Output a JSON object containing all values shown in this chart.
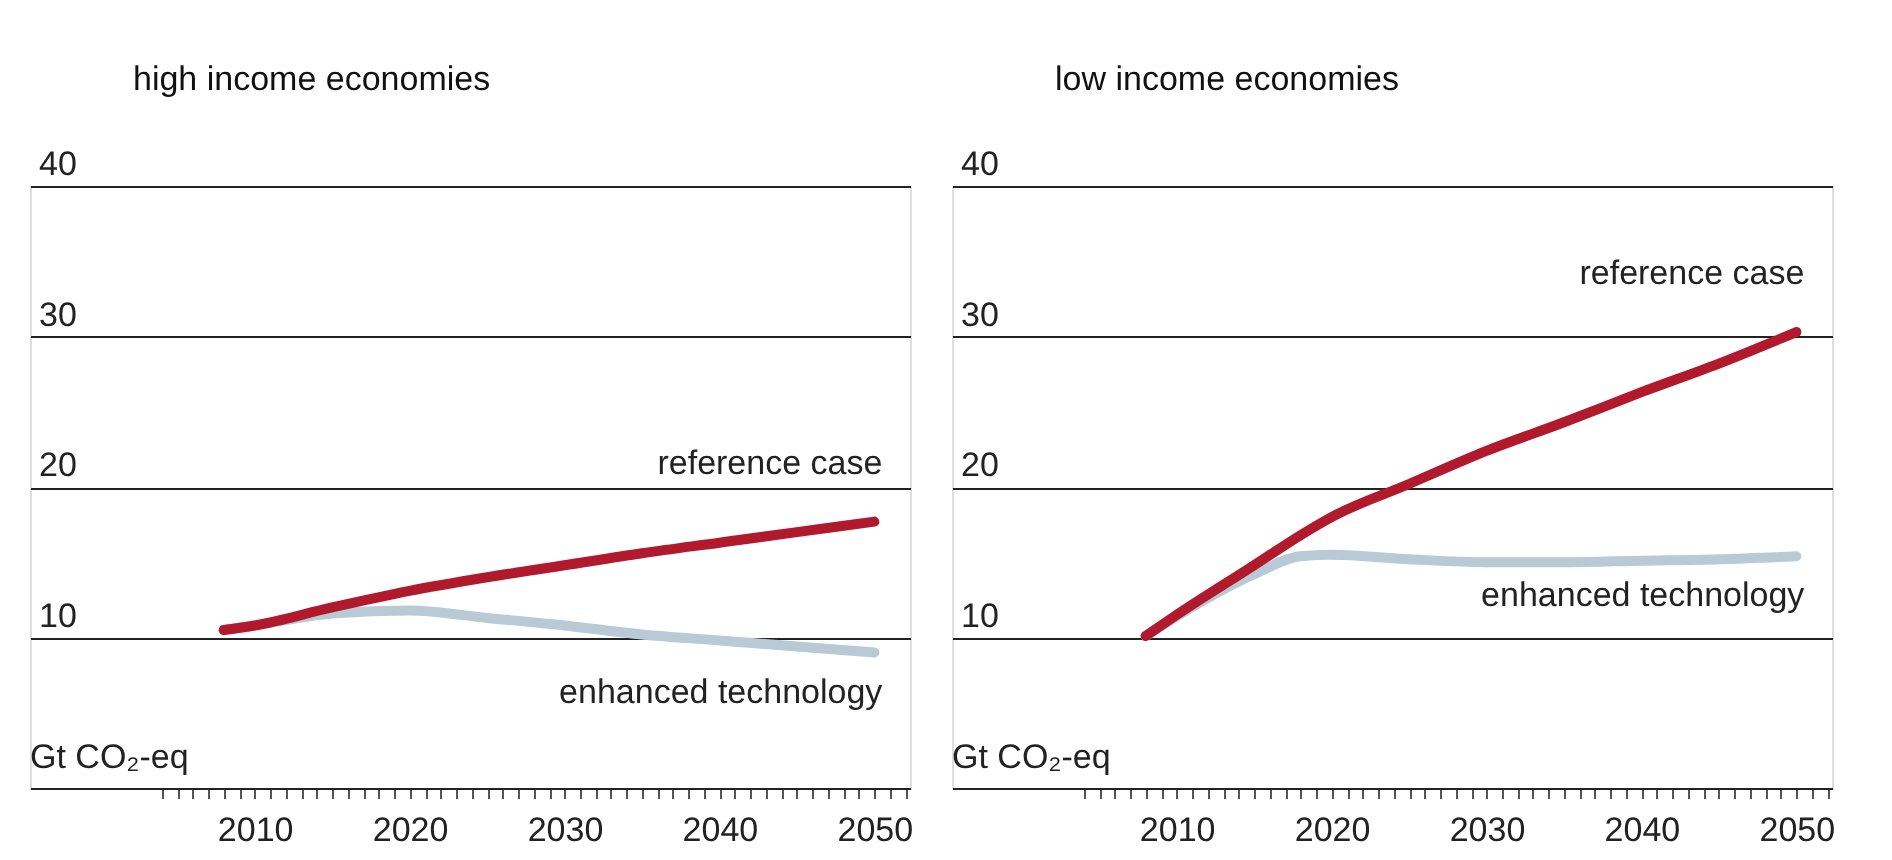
{
  "chart_data": [
    {
      "type": "line",
      "title": "high income economies",
      "ylabel": "Gt CO₂-eq",
      "xlim": [
        1995.5,
        2052.3
      ],
      "ylim": [
        0,
        40
      ],
      "yticks": [
        10,
        20,
        30,
        40
      ],
      "grid": "y",
      "legend": false,
      "xticks": [
        {
          "value": 2004,
          "label": null
        },
        {
          "value": 2005,
          "label": null
        },
        {
          "value": 2006,
          "label": null
        },
        {
          "value": 2007,
          "label": null
        },
        {
          "value": 2008,
          "label": null
        },
        {
          "value": 2009,
          "label": null
        },
        2010,
        {
          "value": 2011,
          "label": null
        },
        {
          "value": 2012,
          "label": null
        },
        {
          "value": 2013,
          "label": null
        },
        {
          "value": 2014,
          "label": null
        },
        {
          "value": 2015,
          "label": null
        },
        {
          "value": 2016,
          "label": null
        },
        {
          "value": 2017,
          "label": null
        },
        {
          "value": 2018,
          "label": null
        },
        {
          "value": 2019,
          "label": null
        },
        2020,
        {
          "value": 2021,
          "label": null
        },
        {
          "value": 2022,
          "label": null
        },
        {
          "value": 2023,
          "label": null
        },
        {
          "value": 2024,
          "label": null
        },
        {
          "value": 2025,
          "label": null
        },
        {
          "value": 2026,
          "label": null
        },
        {
          "value": 2027,
          "label": null
        },
        {
          "value": 2028,
          "label": null
        },
        {
          "value": 2029,
          "label": null
        },
        2030,
        {
          "value": 2031,
          "label": null
        },
        {
          "value": 2032,
          "label": null
        },
        {
          "value": 2033,
          "label": null
        },
        {
          "value": 2034,
          "label": null
        },
        {
          "value": 2035,
          "label": null
        },
        {
          "value": 2036,
          "label": null
        },
        {
          "value": 2037,
          "label": null
        },
        {
          "value": 2038,
          "label": null
        },
        {
          "value": 2039,
          "label": null
        },
        2040,
        {
          "value": 2041,
          "label": null
        },
        {
          "value": 2042,
          "label": null
        },
        {
          "value": 2043,
          "label": null
        },
        {
          "value": 2044,
          "label": null
        },
        {
          "value": 2045,
          "label": null
        },
        {
          "value": 2046,
          "label": null
        },
        {
          "value": 2047,
          "label": null
        },
        {
          "value": 2048,
          "label": null
        },
        {
          "value": 2049,
          "label": null
        },
        2050,
        {
          "value": 2051,
          "label": null
        },
        {
          "value": 2052,
          "label": null
        }
      ],
      "x": [
        2008,
        2010,
        2015,
        2020,
        2025,
        2030,
        2035,
        2040,
        2045,
        2050
      ],
      "series": [
        {
          "name": "enhanced technology",
          "color": "#b7cad5",
          "values": [
            10.5,
            10.8,
            11.6,
            11.8,
            11.3,
            10.8,
            10.2,
            9.8,
            9.4,
            9.0
          ]
        },
        {
          "name": "reference case",
          "color": "#b01a2c",
          "values": [
            10.5,
            10.8,
            12.0,
            13.1,
            14.0,
            14.8,
            15.6,
            16.3,
            17.0,
            17.7
          ]
        }
      ]
    },
    {
      "type": "line",
      "title": "low income economies",
      "ylabel": "Gt CO₂-eq",
      "xlim": [
        1995.5,
        2052.3
      ],
      "ylim": [
        0,
        40
      ],
      "yticks": [
        10,
        20,
        30,
        40
      ],
      "grid": "y",
      "legend": false,
      "xticks": [
        {
          "value": 2004,
          "label": null
        },
        {
          "value": 2005,
          "label": null
        },
        {
          "value": 2006,
          "label": null
        },
        {
          "value": 2007,
          "label": null
        },
        {
          "value": 2008,
          "label": null
        },
        {
          "value": 2009,
          "label": null
        },
        2010,
        {
          "value": 2011,
          "label": null
        },
        {
          "value": 2012,
          "label": null
        },
        {
          "value": 2013,
          "label": null
        },
        {
          "value": 2014,
          "label": null
        },
        {
          "value": 2015,
          "label": null
        },
        {
          "value": 2016,
          "label": null
        },
        {
          "value": 2017,
          "label": null
        },
        {
          "value": 2018,
          "label": null
        },
        {
          "value": 2019,
          "label": null
        },
        2020,
        {
          "value": 2021,
          "label": null
        },
        {
          "value": 2022,
          "label": null
        },
        {
          "value": 2023,
          "label": null
        },
        {
          "value": 2024,
          "label": null
        },
        {
          "value": 2025,
          "label": null
        },
        {
          "value": 2026,
          "label": null
        },
        {
          "value": 2027,
          "label": null
        },
        {
          "value": 2028,
          "label": null
        },
        {
          "value": 2029,
          "label": null
        },
        2030,
        {
          "value": 2031,
          "label": null
        },
        {
          "value": 2032,
          "label": null
        },
        {
          "value": 2033,
          "label": null
        },
        {
          "value": 2034,
          "label": null
        },
        {
          "value": 2035,
          "label": null
        },
        {
          "value": 2036,
          "label": null
        },
        {
          "value": 2037,
          "label": null
        },
        {
          "value": 2038,
          "label": null
        },
        {
          "value": 2039,
          "label": null
        },
        2040,
        {
          "value": 2041,
          "label": null
        },
        {
          "value": 2042,
          "label": null
        },
        {
          "value": 2043,
          "label": null
        },
        {
          "value": 2044,
          "label": null
        },
        {
          "value": 2045,
          "label": null
        },
        {
          "value": 2046,
          "label": null
        },
        {
          "value": 2047,
          "label": null
        },
        {
          "value": 2048,
          "label": null
        },
        {
          "value": 2049,
          "label": null
        },
        2050,
        {
          "value": 2051,
          "label": null
        },
        {
          "value": 2052,
          "label": null
        }
      ],
      "x": [
        2008,
        2010,
        2015,
        2018,
        2020,
        2025,
        2030,
        2035,
        2040,
        2045,
        2050
      ],
      "series": [
        {
          "name": "enhanced technology",
          "color": "#b7cad5",
          "values": [
            10.1,
            11.4,
            14.2,
            15.4,
            15.5,
            15.2,
            15.0,
            15.0,
            15.1,
            15.2,
            15.4
          ]
        },
        {
          "name": "reference case",
          "color": "#b01a2c",
          "values": [
            10.1,
            11.5,
            14.8,
            16.8,
            18.0,
            20.2,
            22.4,
            24.3,
            26.3,
            28.2,
            30.3
          ]
        }
      ]
    }
  ]
}
